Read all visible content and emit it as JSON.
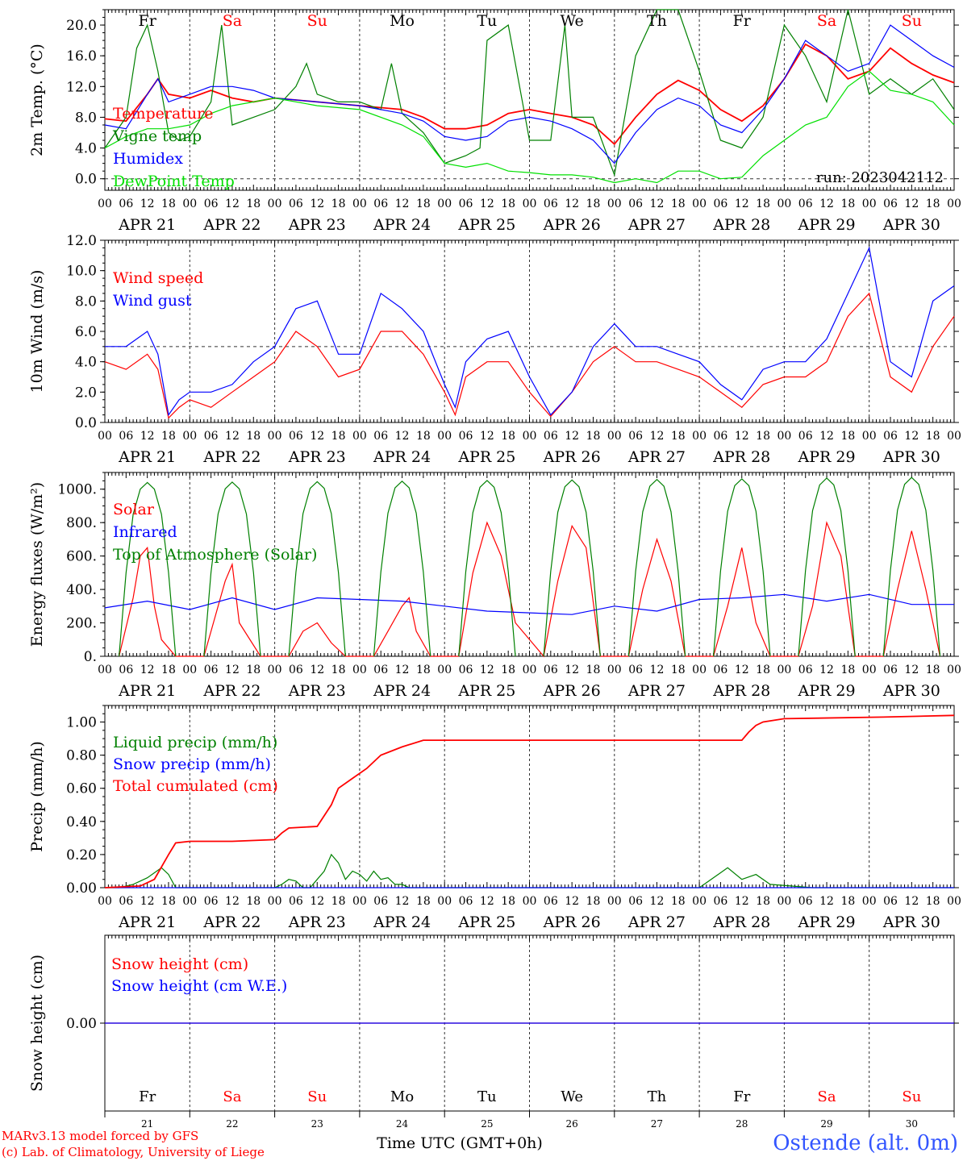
{
  "station": "Ostende (alt. 0m)",
  "credit_model": "MARv3.13 model forced by GFS",
  "credit_lab": "(c) Lab. of Climatology, University of Liege",
  "time_label": "Time UTC (GMT+0h)",
  "run_label": "run: 2023042112",
  "colors": {
    "red": "#ff0000",
    "blue": "#0000ff",
    "dark_green": "#008000",
    "light_green": "#00e000",
    "purple": "#8000a0",
    "station_blue": "#3355ff"
  },
  "hour_ticks": [
    "00",
    "06",
    "12",
    "18"
  ],
  "end_tick": "00",
  "dates": [
    "APR 21",
    "APR 22",
    "APR 23",
    "APR 24",
    "APR 25",
    "APR 26",
    "APR 27",
    "APR 28",
    "APR 29",
    "APR 30"
  ],
  "day_numbers": [
    "21",
    "22",
    "23",
    "24",
    "25",
    "26",
    "27",
    "28",
    "29",
    "30"
  ],
  "weekdays": [
    {
      "label": "Fr",
      "color": "#000000"
    },
    {
      "label": "Sa",
      "color": "#ff0000"
    },
    {
      "label": "Su",
      "color": "#ff0000"
    },
    {
      "label": "Mo",
      "color": "#000000"
    },
    {
      "label": "Tu",
      "color": "#000000"
    },
    {
      "label": "We",
      "color": "#000000"
    },
    {
      "label": "Th",
      "color": "#000000"
    },
    {
      "label": "Fr",
      "color": "#000000"
    },
    {
      "label": "Sa",
      "color": "#ff0000"
    },
    {
      "label": "Su",
      "color": "#ff0000"
    }
  ],
  "chart_data": [
    {
      "type": "line",
      "title": "",
      "ylabel": "2m Temp. (°C)",
      "ylim": [
        -1.5,
        22
      ],
      "yticks": [
        0,
        4,
        8,
        12,
        16,
        20
      ],
      "ytick_labels": [
        "0.0",
        "4.0",
        "8.0",
        "12.0",
        "16.0",
        "20.0"
      ],
      "reference_line": 0,
      "x_unit": "hours since 2023-04-21 00 UTC",
      "xlim": [
        0,
        240
      ],
      "series": [
        {
          "name": "Temperature",
          "color": "#ff0000",
          "x": [
            0,
            6,
            12,
            15,
            18,
            24,
            30,
            36,
            42,
            48,
            60,
            72,
            84,
            90,
            96,
            102,
            108,
            114,
            120,
            126,
            132,
            138,
            144,
            150,
            156,
            162,
            168,
            174,
            180,
            186,
            192,
            198,
            204,
            210,
            216,
            222,
            228,
            234,
            240
          ],
          "y": [
            7.8,
            7.5,
            11,
            13,
            11,
            10.5,
            11.5,
            10.5,
            10,
            10.5,
            10,
            9.5,
            9,
            8,
            6.5,
            6.5,
            7,
            8.5,
            9,
            8.5,
            8,
            7,
            4.5,
            8,
            11,
            12.8,
            11.5,
            9,
            7.5,
            9.5,
            13,
            17.5,
            16,
            13,
            14,
            17,
            15,
            13.5,
            12.5
          ]
        },
        {
          "name": "Vigne temp",
          "color": "#008000",
          "x": [
            0,
            6,
            9,
            12,
            15,
            18,
            21,
            24,
            30,
            33,
            36,
            42,
            48,
            54,
            57,
            60,
            66,
            72,
            78,
            81,
            84,
            90,
            96,
            102,
            106,
            108,
            114,
            120,
            126,
            130,
            132,
            138,
            144,
            150,
            156,
            162,
            168,
            174,
            180,
            186,
            192,
            198,
            204,
            210,
            216,
            222,
            228,
            234,
            240
          ],
          "y": [
            4,
            8,
            17,
            20,
            14,
            6,
            5,
            5.5,
            10,
            20,
            7,
            8,
            9,
            12,
            15,
            11,
            10,
            10,
            9,
            15,
            8.5,
            6,
            2,
            3,
            4,
            18,
            20,
            5,
            5,
            20,
            8,
            8,
            0.5,
            16,
            22,
            22,
            14,
            5,
            4,
            8,
            20,
            16,
            10,
            22,
            11,
            13,
            11,
            13,
            9
          ]
        },
        {
          "name": "Humidex",
          "color": "#0000ff",
          "x": [
            0,
            6,
            12,
            15,
            18,
            24,
            30,
            36,
            42,
            48,
            60,
            72,
            84,
            90,
            96,
            102,
            108,
            114,
            120,
            126,
            132,
            138,
            144,
            150,
            156,
            162,
            168,
            174,
            180,
            186,
            192,
            198,
            204,
            210,
            216,
            222,
            228,
            234,
            240
          ],
          "y": [
            7,
            6.5,
            11,
            13,
            10,
            11,
            12,
            12,
            11.5,
            10.5,
            10,
            9.5,
            8.5,
            7.5,
            5.5,
            5,
            5.5,
            7.5,
            8,
            7.5,
            6.5,
            5,
            2,
            6,
            9,
            10.5,
            9.5,
            7,
            6,
            9,
            13,
            18,
            16,
            14,
            15,
            20,
            18,
            16,
            14.5
          ]
        },
        {
          "name": "DewPoint Temp",
          "color": "#00e000",
          "x": [
            0,
            6,
            12,
            18,
            24,
            30,
            36,
            42,
            48,
            60,
            72,
            84,
            90,
            96,
            102,
            108,
            114,
            120,
            126,
            132,
            138,
            144,
            150,
            156,
            162,
            168,
            174,
            180,
            186,
            192,
            198,
            204,
            210,
            216,
            222,
            228,
            234,
            240
          ],
          "y": [
            4,
            5.5,
            6.5,
            6.5,
            7,
            8.5,
            9.5,
            10,
            10.5,
            9.5,
            9,
            7,
            5.5,
            2,
            1.5,
            2,
            1,
            0.8,
            0.5,
            0.5,
            0.2,
            -0.5,
            0,
            -0.5,
            1,
            1,
            0,
            0.2,
            3,
            5,
            7,
            8,
            12,
            14,
            11.5,
            11,
            10,
            7
          ]
        }
      ]
    },
    {
      "type": "line",
      "title": "",
      "ylabel": "10m Wind (m/s)",
      "ylim": [
        0,
        12
      ],
      "yticks": [
        0,
        2,
        4,
        6,
        8,
        10,
        12
      ],
      "ytick_labels": [
        "0.0",
        "2.0",
        "4.0",
        "6.0",
        "8.0",
        "10.0",
        "12.0"
      ],
      "reference_line": 5,
      "x_unit": "hours since 2023-04-21 00 UTC",
      "xlim": [
        0,
        240
      ],
      "series": [
        {
          "name": "Wind speed",
          "color": "#ff0000",
          "x": [
            0,
            6,
            12,
            15,
            18,
            21,
            24,
            30,
            36,
            42,
            48,
            54,
            60,
            66,
            72,
            78,
            84,
            90,
            96,
            99,
            102,
            108,
            114,
            120,
            126,
            132,
            138,
            144,
            150,
            156,
            162,
            168,
            174,
            180,
            186,
            192,
            198,
            204,
            210,
            216,
            222,
            228,
            234,
            240
          ],
          "y": [
            4,
            3.5,
            4.5,
            3.5,
            0.3,
            1,
            1.5,
            1,
            2,
            3,
            4,
            6,
            5,
            3,
            3.5,
            6,
            6,
            4.5,
            2,
            0.5,
            3,
            4,
            4,
            2,
            0.4,
            2,
            4,
            5,
            4,
            4,
            3.5,
            3,
            2,
            1,
            2.5,
            3,
            3,
            4,
            7,
            8.5,
            3,
            2,
            5,
            7
          ]
        },
        {
          "name": "Wind gust",
          "color": "#0000ff",
          "x": [
            0,
            6,
            12,
            15,
            18,
            21,
            24,
            30,
            36,
            42,
            48,
            54,
            60,
            66,
            72,
            78,
            84,
            90,
            96,
            99,
            102,
            108,
            114,
            120,
            126,
            132,
            138,
            144,
            150,
            156,
            162,
            168,
            174,
            180,
            186,
            192,
            198,
            204,
            210,
            216,
            222,
            228,
            234,
            240
          ],
          "y": [
            5,
            5,
            6,
            4.5,
            0.5,
            1.5,
            2,
            2,
            2.5,
            4,
            5,
            7.5,
            8,
            4.5,
            4.5,
            8.5,
            7.5,
            6,
            2.5,
            1,
            4,
            5.5,
            6,
            3,
            0.5,
            2,
            5,
            6.5,
            5,
            5,
            4.5,
            4,
            2.5,
            1.5,
            3.5,
            4,
            4,
            5.5,
            8.5,
            11.5,
            4,
            3,
            8,
            9
          ]
        }
      ]
    },
    {
      "type": "line",
      "title": "",
      "ylabel": "Energy fluxes (W/m²)",
      "ylim": [
        0,
        1100
      ],
      "yticks": [
        0,
        200,
        400,
        600,
        800,
        1000
      ],
      "ytick_labels": [
        "0.",
        "200.",
        "400.",
        "600.",
        "800.",
        "1000."
      ],
      "x_unit": "hours since 2023-04-21 00 UTC",
      "xlim": [
        0,
        240
      ],
      "series": [
        {
          "name": "Solar",
          "color": "#ff0000",
          "x": [
            4,
            8,
            10,
            12,
            14,
            16,
            20,
            28,
            34,
            36,
            38,
            44,
            52,
            56,
            60,
            64,
            68,
            76,
            80,
            84,
            86,
            88,
            92,
            100,
            104,
            108,
            112,
            116,
            124,
            128,
            132,
            136,
            140,
            148,
            152,
            156,
            160,
            164,
            172,
            176,
            180,
            184,
            188,
            196,
            200,
            204,
            208,
            212,
            220,
            224,
            228,
            232,
            236
          ],
          "y": [
            0,
            350,
            600,
            650,
            300,
            100,
            0,
            0,
            450,
            550,
            200,
            0,
            0,
            150,
            200,
            80,
            0,
            0,
            150,
            300,
            350,
            150,
            0,
            0,
            500,
            800,
            600,
            200,
            0,
            450,
            780,
            650,
            0,
            0,
            400,
            700,
            450,
            0,
            0,
            300,
            650,
            200,
            0,
            0,
            300,
            800,
            600,
            0,
            0,
            400,
            750,
            400,
            0
          ]
        },
        {
          "name": "Infrared",
          "color": "#0000ff",
          "x": [
            0,
            12,
            24,
            36,
            48,
            60,
            72,
            84,
            96,
            108,
            120,
            132,
            144,
            156,
            168,
            180,
            192,
            204,
            216,
            228,
            240
          ],
          "y": [
            290,
            330,
            280,
            350,
            280,
            350,
            340,
            330,
            300,
            270,
            260,
            250,
            300,
            270,
            340,
            350,
            370,
            330,
            370,
            310,
            310
          ]
        },
        {
          "name": "Top of Atmosphere (Solar)",
          "color": "#008000",
          "x": [
            4,
            6,
            8,
            10,
            12,
            14,
            16,
            18,
            20
          ],
          "y": [
            0,
            500,
            850,
            1000,
            1040,
            1000,
            850,
            500,
            0
          ],
          "repeat_daily": true,
          "peaks": [
            1040,
            1042,
            1045,
            1048,
            1052,
            1055,
            1058,
            1062,
            1066,
            1070
          ]
        }
      ]
    },
    {
      "type": "line",
      "title": "",
      "ylabel": "Precip (mm/h)",
      "ylim": [
        0,
        1.1
      ],
      "yticks": [
        0,
        0.2,
        0.4,
        0.6,
        0.8,
        1.0
      ],
      "ytick_labels": [
        "0.00",
        "0.20",
        "0.40",
        "0.60",
        "0.80",
        "1.00"
      ],
      "x_unit": "hours since 2023-04-21 00 UTC",
      "xlim": [
        0,
        240
      ],
      "series": [
        {
          "name": "Liquid precip (mm/h)",
          "color": "#008000",
          "x": [
            0,
            4,
            8,
            12,
            16,
            18,
            20,
            24,
            48,
            50,
            52,
            54,
            56,
            58,
            60,
            62,
            64,
            66,
            68,
            70,
            72,
            74,
            76,
            78,
            80,
            82,
            84,
            86,
            88,
            90,
            96,
            144,
            168,
            176,
            180,
            184,
            188,
            200,
            240
          ],
          "y": [
            0,
            0,
            0.02,
            0.06,
            0.12,
            0.08,
            0,
            0,
            0,
            0.02,
            0.05,
            0.04,
            0,
            0,
            0.05,
            0.1,
            0.2,
            0.15,
            0.05,
            0.1,
            0.08,
            0.04,
            0.1,
            0.05,
            0.06,
            0.02,
            0.02,
            0,
            0,
            0,
            0,
            0,
            0,
            0.12,
            0.05,
            0.08,
            0.02,
            0,
            0
          ]
        },
        {
          "name": "Snow precip (mm/h)",
          "color": "#0000ff",
          "x": [
            0,
            240
          ],
          "y": [
            0,
            0
          ]
        },
        {
          "name": "Total cumulated (cm)",
          "color": "#ff0000",
          "x": [
            0,
            10,
            14,
            18,
            20,
            24,
            36,
            48,
            50,
            52,
            60,
            64,
            66,
            70,
            74,
            78,
            84,
            90,
            120,
            180,
            182,
            184,
            186,
            192,
            220,
            240
          ],
          "y": [
            0,
            0.01,
            0.05,
            0.2,
            0.27,
            0.28,
            0.28,
            0.29,
            0.33,
            0.36,
            0.37,
            0.5,
            0.6,
            0.66,
            0.72,
            0.8,
            0.85,
            0.89,
            0.89,
            0.89,
            0.94,
            0.98,
            1.0,
            1.02,
            1.03,
            1.04
          ]
        }
      ]
    },
    {
      "type": "line",
      "title": "",
      "ylabel": "Snow height (cm)",
      "ylim": [
        -1,
        1
      ],
      "yticks": [
        0
      ],
      "ytick_labels": [
        "0.00"
      ],
      "x_unit": "hours since 2023-04-21 00 UTC",
      "xlim": [
        0,
        240
      ],
      "series": [
        {
          "name": "Snow height (cm)",
          "color": "#ff0000",
          "x": [
            0,
            240
          ],
          "y": [
            0,
            0
          ]
        },
        {
          "name": "Snow height (cm W.E.)",
          "color": "#0000ff",
          "x": [
            0,
            240
          ],
          "y": [
            0,
            0
          ]
        }
      ]
    }
  ]
}
